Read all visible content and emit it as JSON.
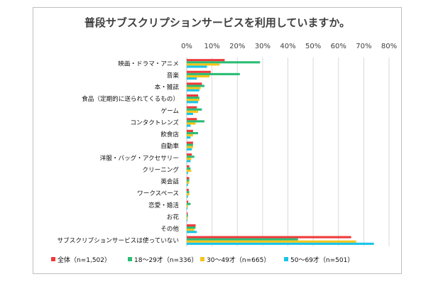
{
  "chart_data": {
    "type": "bar",
    "orientation": "horizontal",
    "title": "普段サブスクリプションサービスを利用していますか。",
    "xlim": [
      0,
      80
    ],
    "x_ticks": [
      "0%",
      "10%",
      "20%",
      "30%",
      "40%",
      "50%",
      "60%",
      "70%",
      "80%"
    ],
    "grid": true,
    "legend_position": "bottom",
    "categories": [
      "映画・ドラマ・アニメ",
      "音楽",
      "本・雑誌",
      "食品（定期的に送られてくるもの）",
      "ゲーム",
      "コンタクトレンズ",
      "飲食店",
      "自動車",
      "洋服・バッグ・アクセサリー",
      "クリーニング",
      "英会話",
      "ワークスペース",
      "恋愛・婚活",
      "お花",
      "その他",
      "サブスクリプションサービスは使っていない"
    ],
    "series": [
      {
        "name": "全体（n=1,502）",
        "color": "#ee3a3a",
        "values": [
          15.0,
          9.5,
          6.0,
          4.5,
          4.0,
          4.0,
          2.5,
          2.5,
          2.0,
          1.0,
          1.0,
          0.8,
          0.6,
          0.4,
          3.5,
          65.0
        ]
      },
      {
        "name": "18～29才（n=336）",
        "color": "#2bbd74",
        "values": [
          29.0,
          21.0,
          7.0,
          5.0,
          6.0,
          7.0,
          4.5,
          2.5,
          3.0,
          1.5,
          1.0,
          1.0,
          1.5,
          0.5,
          3.5,
          44.0
        ]
      },
      {
        "name": "30～49才（n=665）",
        "color": "#f5c518",
        "values": [
          13.0,
          9.0,
          5.5,
          5.0,
          4.5,
          3.5,
          2.5,
          2.5,
          1.8,
          1.8,
          1.0,
          1.0,
          0.5,
          0.4,
          3.0,
          67.0
        ]
      },
      {
        "name": "50～69才（n=501）",
        "color": "#19c4e8",
        "values": [
          8.0,
          4.0,
          5.0,
          4.5,
          2.5,
          1.5,
          1.5,
          2.0,
          1.5,
          0.5,
          0.5,
          0.5,
          0.3,
          0.3,
          4.0,
          74.0
        ]
      }
    ]
  }
}
